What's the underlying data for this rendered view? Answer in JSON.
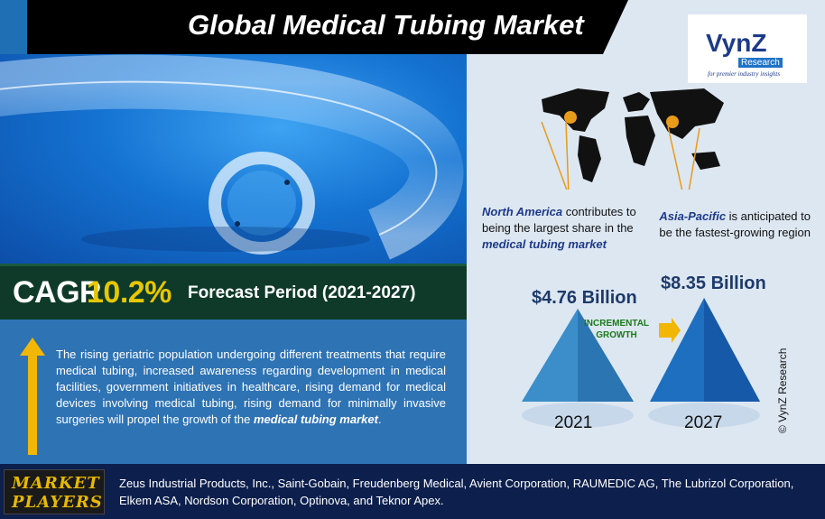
{
  "title": "Global Medical Tubing Market",
  "logo": {
    "brand": "VynZ",
    "sub": "Research",
    "tagline": "for premier industry insights"
  },
  "cagr": {
    "label": "CAGR",
    "value": "10.2%",
    "forecast": "Forecast Period (2021-2027)"
  },
  "description": {
    "text": "The rising geriatric population undergoing different treatments that require medical tubing, increased awareness regarding development in medical facilities, government initiatives in healthcare, rising demand for medical devices involving medical tubing, rising demand for minimally invasive surgeries will propel the growth of the ",
    "emphasis": "medical tubing market",
    "end": "."
  },
  "regions": {
    "north_america": {
      "name": "North America",
      "text_a": " contributes to being the largest share in the ",
      "emphasis": "medical tubing market"
    },
    "asia_pacific": {
      "name": "Asia-Pacific",
      "text": " is anticipated to be the fastest-growing region"
    }
  },
  "values": {
    "v2021": "$4.76 Billion",
    "v2027": "$8.35 Billion",
    "y2021": "2021",
    "y2027": "2027",
    "incremental_l1": "INCREMENTAL",
    "incremental_l2": "GROWTH"
  },
  "copyright": "© VynZ Research",
  "players": {
    "label_l1": "MARKET",
    "label_l2": "PLAYERS",
    "list": "Zeus Industrial Products, Inc., Saint-Gobain, Freudenberg Medical, Avient Corporation, RAUMEDIC AG, The Lubrizol Corporation, Elkem ASA, Nordson Corporation, Optinova, and Teknor Apex."
  },
  "colors": {
    "accent_blue": "#2e73b4",
    "dark_green": "#0f3a2a",
    "gold": "#e6c700",
    "navy": "#0d1f4d"
  }
}
